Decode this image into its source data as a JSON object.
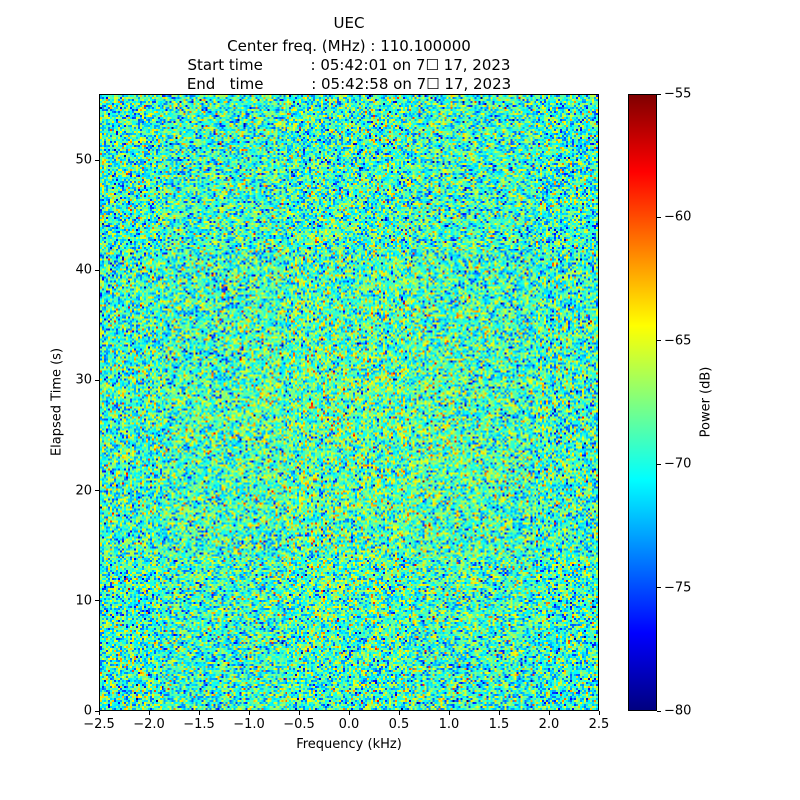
{
  "chart_data": {
    "type": "heatmap",
    "title": "UEC",
    "subtitle_lines": [
      "Center freq. (MHz) : 110.100000",
      "Start time          : 05:42:01 on 7☐ 17, 2023",
      "End   time          : 05:42:58 on 7☐ 17, 2023"
    ],
    "xlabel": "Frequency (kHz)",
    "ylabel": "Elapsed Time (s)",
    "xlim": [
      -2.5,
      2.5
    ],
    "ylim": [
      0,
      56
    ],
    "grid": false,
    "xticks": [
      -2.5,
      -2.0,
      -1.5,
      -1.0,
      -0.5,
      0.0,
      0.5,
      1.0,
      1.5,
      2.0,
      2.5
    ],
    "xtick_labels": [
      "−2.5",
      "−2.0",
      "−1.5",
      "−1.0",
      "−0.5",
      "0.0",
      "0.5",
      "1.0",
      "1.5",
      "2.0",
      "2.5"
    ],
    "yticks": [
      0,
      10,
      20,
      30,
      40,
      50
    ],
    "ytick_labels": [
      "0",
      "10",
      "20",
      "30",
      "40",
      "50"
    ],
    "colorbar": {
      "label": "Power (dB)",
      "vmin": -80,
      "vmax": -55,
      "ticks": [
        -55,
        -60,
        -65,
        -70,
        -75,
        -80
      ],
      "tick_labels": [
        "−55",
        "−60",
        "−65",
        "−70",
        "−75",
        "−80"
      ],
      "colormap": "jet",
      "stops": [
        {
          "pos": 0.0,
          "color": "#000080"
        },
        {
          "pos": 0.125,
          "color": "#0000ff"
        },
        {
          "pos": 0.375,
          "color": "#00ffff"
        },
        {
          "pos": 0.625,
          "color": "#ffff00"
        },
        {
          "pos": 0.875,
          "color": "#ff0000"
        },
        {
          "pos": 1.0,
          "color": "#800000"
        }
      ]
    },
    "noise": {
      "rows": 308,
      "cols": 250,
      "mean_db": -69.5,
      "sigma_db": 3.3,
      "blob_db": 1.2,
      "seed": 20230717,
      "description": "Random noise spectrogram; power mostly between −75 and −63 dB (green/cyan) with sparse speckles reaching −55 dB (red) and −80 dB (dark blue)"
    }
  }
}
